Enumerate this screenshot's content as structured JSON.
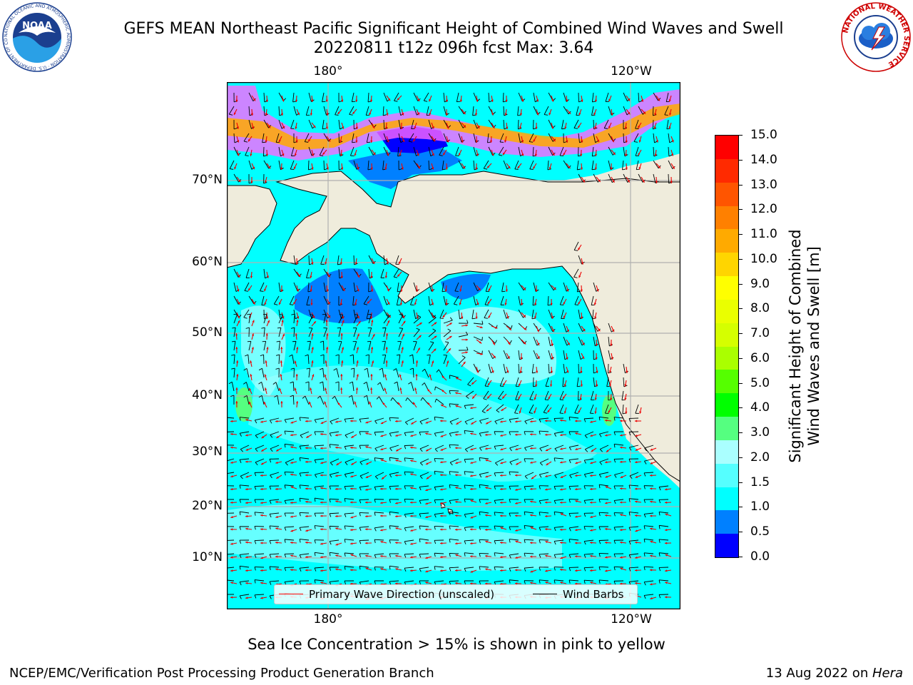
{
  "title": {
    "line1": "GEFS MEAN Northeast Pacific Significant Height of Combined Wind Waves and Swell",
    "line2": "20220811 t12z 096h fcst   Max: 3.64"
  },
  "logos": {
    "noaa": {
      "text": "NOAA",
      "ring_text": "NATIONAL OCEANIC AND ATMOSPHERIC ADMINISTRATION · U.S. DEPARTMENT OF COMMERCE"
    },
    "nws": {
      "ring_text": "NATIONAL WEATHER SERVICE"
    }
  },
  "map": {
    "lon_labels_top": [
      "180°",
      "120°W"
    ],
    "lon_labels_bottom": [
      "180°",
      "120°W"
    ],
    "lat_labels": [
      "70°N",
      "60°N",
      "50°N",
      "40°N",
      "30°N",
      "20°N",
      "10°N"
    ],
    "colors": {
      "land": "#efecdc",
      "ocean_default": "#00ffff",
      "wave_arrow": "#ff0000",
      "wind_barb": "#000000",
      "grid": "#b0b0b0"
    }
  },
  "legend": {
    "wave": "Primary Wave Direction (unscaled)",
    "wind": "Wind Barbs"
  },
  "colorbar": {
    "title_line1": "Significant Height of Combined",
    "title_line2": "Wind Waves and Swell [m]",
    "ticks": [
      "15.0",
      "14.0",
      "13.0",
      "12.0",
      "11.0",
      "10.0",
      "9.0",
      "8.0",
      "7.0",
      "6.0",
      "5.0",
      "4.0",
      "3.0",
      "2.0",
      "1.5",
      "1.0",
      "0.5",
      "0.0"
    ],
    "colors": [
      "#ff0000",
      "#ff2a00",
      "#ff5500",
      "#ff8000",
      "#ffaa00",
      "#ffd500",
      "#ffff00",
      "#eaff00",
      "#d5ff00",
      "#aaff00",
      "#55ff00",
      "#00ff00",
      "#55ff80",
      "#aaffff",
      "#55ffff",
      "#00ffff",
      "#0080ff",
      "#0000ff"
    ]
  },
  "note": "Sea Ice Concentration > 15% is shown in pink to yellow",
  "footer": {
    "left": "NCEP/EMC/Verification Post Processing Product Generation Branch",
    "right_date": "13 Aug 2022 on ",
    "right_host": "Hera"
  }
}
